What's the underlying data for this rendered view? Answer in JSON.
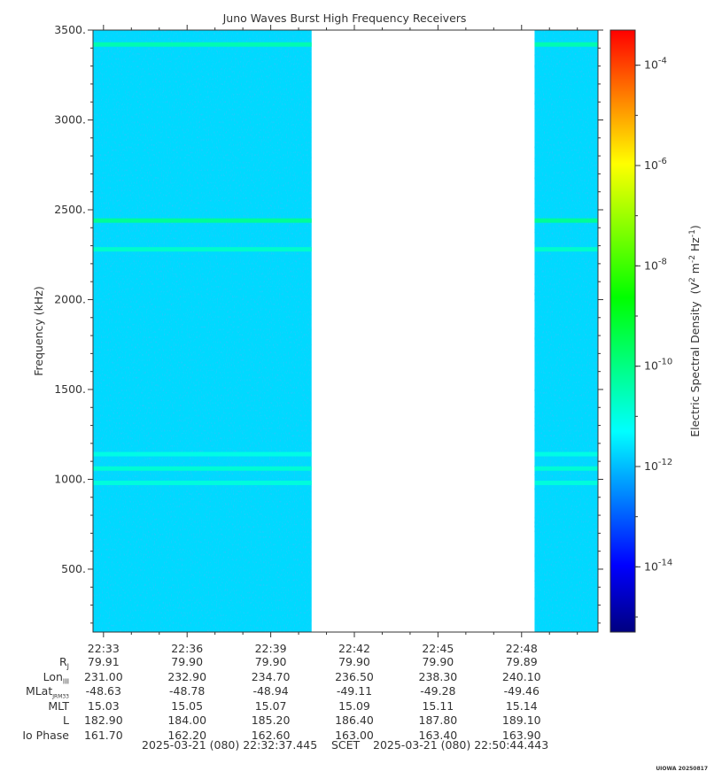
{
  "chart_data": {
    "type": "heatmap",
    "title": "Juno Waves Burst High Frequency Receivers",
    "ylabel": "Frequency (kHz)",
    "ylim": [
      150,
      3500
    ],
    "yticks": [
      "500.",
      "1000.",
      "1500.",
      "2000.",
      "2500.",
      "3000.",
      "3500."
    ],
    "ytick_values": [
      500,
      1000,
      1500,
      2000,
      2500,
      3000,
      3500
    ],
    "x_start": "22:32:37.445",
    "x_end": "22:50:44.443",
    "xtick_labels": [
      "22:33",
      "22:36",
      "22:39",
      "22:42",
      "22:45",
      "22:48"
    ],
    "data_segments": [
      {
        "start": "22:32:37",
        "end": "22:40:28"
      },
      {
        "start": "22:48:28",
        "end": "22:50:44"
      }
    ],
    "background_level_log10": -11.7,
    "emission_lines_khz": [
      {
        "freq": 3420,
        "level_log10": -10.4
      },
      {
        "freq": 2440,
        "level_log10": -10.1
      },
      {
        "freq": 2280,
        "level_log10": -10.7
      },
      {
        "freq": 1140,
        "level_log10": -11.0
      },
      {
        "freq": 1060,
        "level_log10": -10.8
      },
      {
        "freq": 980,
        "level_log10": -10.9
      }
    ],
    "colorbar": {
      "label": "Electric Spectral Density",
      "units": "(V2 m-2 Hz-1)",
      "log10_range": [
        -15.3,
        -3.3
      ],
      "tick_exponents": [
        "-4",
        "-6",
        "-8",
        "-10",
        "-12",
        "-14"
      ],
      "colormap": [
        "#000080",
        "#0000ff",
        "#0080ff",
        "#00ffff",
        "#00ff80",
        "#00ff00",
        "#80ff00",
        "#ffff00",
        "#ff8000",
        "#ff0000"
      ]
    }
  },
  "ephemeris": {
    "labels": [
      "R",
      "Lon",
      "MLat",
      "MLT",
      "L",
      "Io Phase"
    ],
    "label_subscripts": [
      "J",
      "III",
      "JRM33",
      "",
      "",
      ""
    ],
    "rows": [
      [
        "79.91",
        "79.90",
        "79.90",
        "79.90",
        "79.90",
        "79.89"
      ],
      [
        "231.00",
        "232.90",
        "234.70",
        "236.50",
        "238.30",
        "240.10"
      ],
      [
        "-48.63",
        "-48.78",
        "-48.94",
        "-49.11",
        "-49.28",
        "-49.46"
      ],
      [
        "15.03",
        "15.05",
        "15.07",
        "15.09",
        "15.11",
        "15.14"
      ],
      [
        "182.90",
        "184.00",
        "185.20",
        "186.40",
        "187.80",
        "189.10"
      ],
      [
        "161.70",
        "162.20",
        "162.60",
        "163.00",
        "163.40",
        "163.90"
      ]
    ]
  },
  "time_range": {
    "start": "2025-03-21 (080) 22:32:37.445",
    "frame": "SCET",
    "end": "2025-03-21 (080) 22:50:44.443"
  },
  "stamp": "UIOWA 20250817"
}
